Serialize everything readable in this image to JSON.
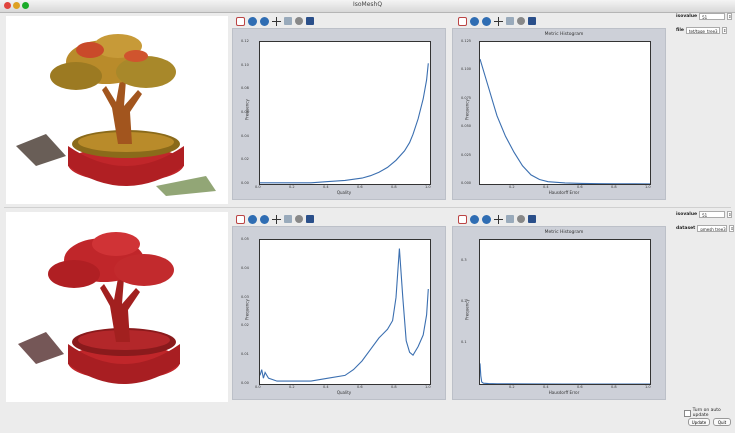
{
  "window": {
    "title": "IsoMeshQ"
  },
  "colors": {
    "curve": "#3b6fb0",
    "frame_bg": "#cdd0d8",
    "tree_top": "#b98b2a",
    "tree_bottom": "#c0262a"
  },
  "toolbar_icons": [
    "home-icon",
    "back-icon",
    "forward-icon",
    "pan-icon",
    "zoom-icon",
    "configure-icon",
    "save-icon"
  ],
  "top": {
    "quality_plot": {
      "xlabel": "Quality",
      "ylabel": "Frequency",
      "xticks": [
        "0.0",
        "0.2",
        "0.4",
        "0.6",
        "0.8",
        "1.0"
      ],
      "yticks": [
        "0.00",
        "0.02",
        "0.04",
        "0.06",
        "0.08",
        "0.10",
        "0.12"
      ]
    },
    "metric_plot": {
      "title": "Metric Histogram",
      "xlabel": "Hausdorff Error",
      "ylabel": "Frequency",
      "xticks": [
        "0.2",
        "0.4",
        "0.6",
        "0.8",
        "1.0"
      ],
      "yticks": [
        "0.000",
        "0.025",
        "0.050",
        "0.075",
        "0.100",
        "0.125"
      ]
    },
    "controls": {
      "iso_label": "isovalue",
      "iso_value": "51",
      "file_label": "file",
      "file_value": "tet/tpqe_tree3"
    }
  },
  "bottom": {
    "quality_plot": {
      "xlabel": "Quality",
      "ylabel": "Frequency",
      "xticks": [
        "0.0",
        "0.2",
        "0.4",
        "0.6",
        "0.8",
        "1.0"
      ],
      "yticks": [
        "0.00",
        "0.01",
        "0.02",
        "0.03",
        "0.04",
        "0.05"
      ]
    },
    "metric_plot": {
      "title": "Metric Histogram",
      "xlabel": "Hausdorff Error",
      "ylabel": "Frequency",
      "xticks": [
        "0.2",
        "0.4",
        "0.6",
        "0.8",
        "1.0"
      ],
      "yticks": [
        "0.1",
        "0.2",
        "0.3"
      ]
    },
    "controls": {
      "iso_label": "isovalue",
      "iso_value": "51",
      "dataset_label": "dataset",
      "dataset_value": "pmesh tree3"
    }
  },
  "footer": {
    "auto_update_label": "Turn on auto update",
    "update_button": "Update",
    "quit_button": "Quit"
  },
  "chart_data": [
    {
      "type": "line",
      "panel": "top-quality",
      "xlabel": "Quality",
      "ylabel": "Frequency",
      "xlim": [
        0,
        1
      ],
      "ylim": [
        0,
        0.12
      ],
      "x": [
        0.0,
        0.1,
        0.2,
        0.3,
        0.4,
        0.5,
        0.6,
        0.65,
        0.7,
        0.75,
        0.8,
        0.85,
        0.88,
        0.9,
        0.93,
        0.96,
        0.98,
        0.99
      ],
      "y": [
        0.001,
        0.001,
        0.001,
        0.001,
        0.002,
        0.003,
        0.005,
        0.007,
        0.01,
        0.014,
        0.02,
        0.028,
        0.035,
        0.042,
        0.055,
        0.072,
        0.088,
        0.102
      ]
    },
    {
      "type": "line",
      "panel": "top-metric",
      "title": "Metric Histogram",
      "xlabel": "Hausdorff Error",
      "ylabel": "Frequency",
      "xlim": [
        0,
        1
      ],
      "ylim": [
        0,
        0.125
      ],
      "x": [
        0.0,
        0.02,
        0.05,
        0.08,
        0.1,
        0.15,
        0.2,
        0.25,
        0.3,
        0.35,
        0.4,
        0.5,
        0.6,
        0.7,
        0.8,
        1.0
      ],
      "y": [
        0.11,
        0.1,
        0.085,
        0.07,
        0.06,
        0.042,
        0.028,
        0.016,
        0.008,
        0.004,
        0.002,
        0.001,
        0.0005,
        0.0003,
        0.0002,
        0.0001
      ]
    },
    {
      "type": "line",
      "panel": "bottom-quality",
      "xlabel": "Quality",
      "ylabel": "Frequency",
      "xlim": [
        0,
        1
      ],
      "ylim": [
        0,
        0.05
      ],
      "x": [
        0.0,
        0.01,
        0.02,
        0.03,
        0.05,
        0.1,
        0.2,
        0.3,
        0.4,
        0.5,
        0.55,
        0.6,
        0.65,
        0.7,
        0.75,
        0.78,
        0.8,
        0.82,
        0.84,
        0.86,
        0.88,
        0.9,
        0.93,
        0.96,
        0.98,
        0.99
      ],
      "y": [
        0.003,
        0.005,
        0.002,
        0.004,
        0.002,
        0.001,
        0.001,
        0.001,
        0.002,
        0.003,
        0.005,
        0.008,
        0.012,
        0.016,
        0.019,
        0.022,
        0.03,
        0.047,
        0.03,
        0.015,
        0.011,
        0.01,
        0.013,
        0.017,
        0.024,
        0.033
      ]
    },
    {
      "type": "line",
      "panel": "bottom-metric",
      "title": "Metric Histogram",
      "xlabel": "Hausdorff Error",
      "ylabel": "Frequency",
      "xlim": [
        0,
        1
      ],
      "ylim": [
        0,
        0.35
      ],
      "x": [
        0.0,
        0.005,
        0.01,
        0.02,
        0.05,
        0.1,
        0.3,
        0.5,
        0.7,
        1.0
      ],
      "y": [
        0.05,
        0.02,
        0.005,
        0.002,
        0.001,
        0.0005,
        0.0002,
        0.0001,
        0.0001,
        0.0001
      ]
    }
  ]
}
